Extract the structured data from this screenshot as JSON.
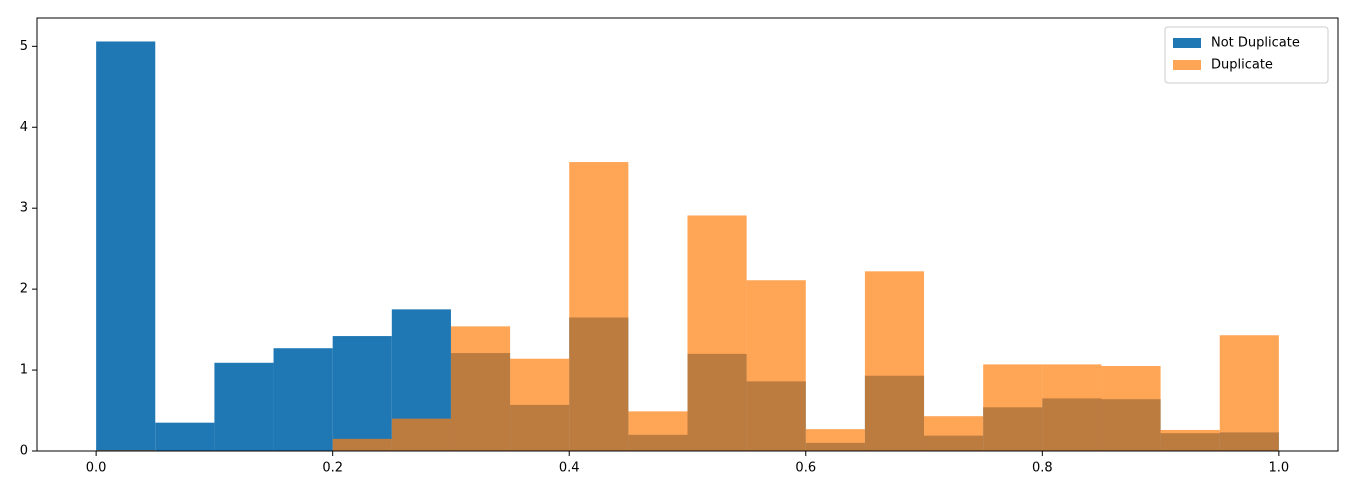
{
  "chart_data": {
    "type": "histogram",
    "bins": [
      0,
      0.05,
      0.1,
      0.15,
      0.2,
      0.25,
      0.3,
      0.35,
      0.4,
      0.45,
      0.5,
      0.55,
      0.6,
      0.65,
      0.7,
      0.75,
      0.8,
      0.85,
      0.9,
      0.95,
      1.0
    ],
    "series": [
      {
        "name": "Not Duplicate",
        "color": "#1f77b4",
        "alpha": 1,
        "values": [
          5.06,
          0.35,
          1.09,
          1.27,
          1.42,
          1.75,
          1.21,
          0.57,
          1.65,
          0.2,
          1.2,
          0.86,
          0.1,
          0.93,
          0.19,
          0.54,
          0.65,
          0.64,
          0.22,
          0.23
        ]
      },
      {
        "name": "Duplicate",
        "color": "#ff7f0e",
        "alpha": 0.7,
        "values": [
          0.01,
          0,
          0,
          0,
          0.15,
          0.4,
          1.54,
          1.14,
          3.57,
          0.49,
          2.91,
          2.11,
          0.27,
          2.22,
          0.43,
          1.07,
          1.07,
          1.05,
          0.26,
          1.43
        ]
      }
    ],
    "xlim": [
      -0.05,
      1.05
    ],
    "ylim": [
      0,
      5.35
    ],
    "xticks": [
      {
        "value": 0,
        "label": "0.0"
      },
      {
        "value": 0.2,
        "label": "0.2"
      },
      {
        "value": 0.4,
        "label": "0.4"
      },
      {
        "value": 0.6,
        "label": "0.6"
      },
      {
        "value": 0.8,
        "label": "0.8"
      },
      {
        "value": 1.0,
        "label": "1.0"
      }
    ],
    "yticks": [
      0,
      1,
      2,
      3,
      4,
      5
    ],
    "grid": false,
    "legend": "upper-right"
  }
}
